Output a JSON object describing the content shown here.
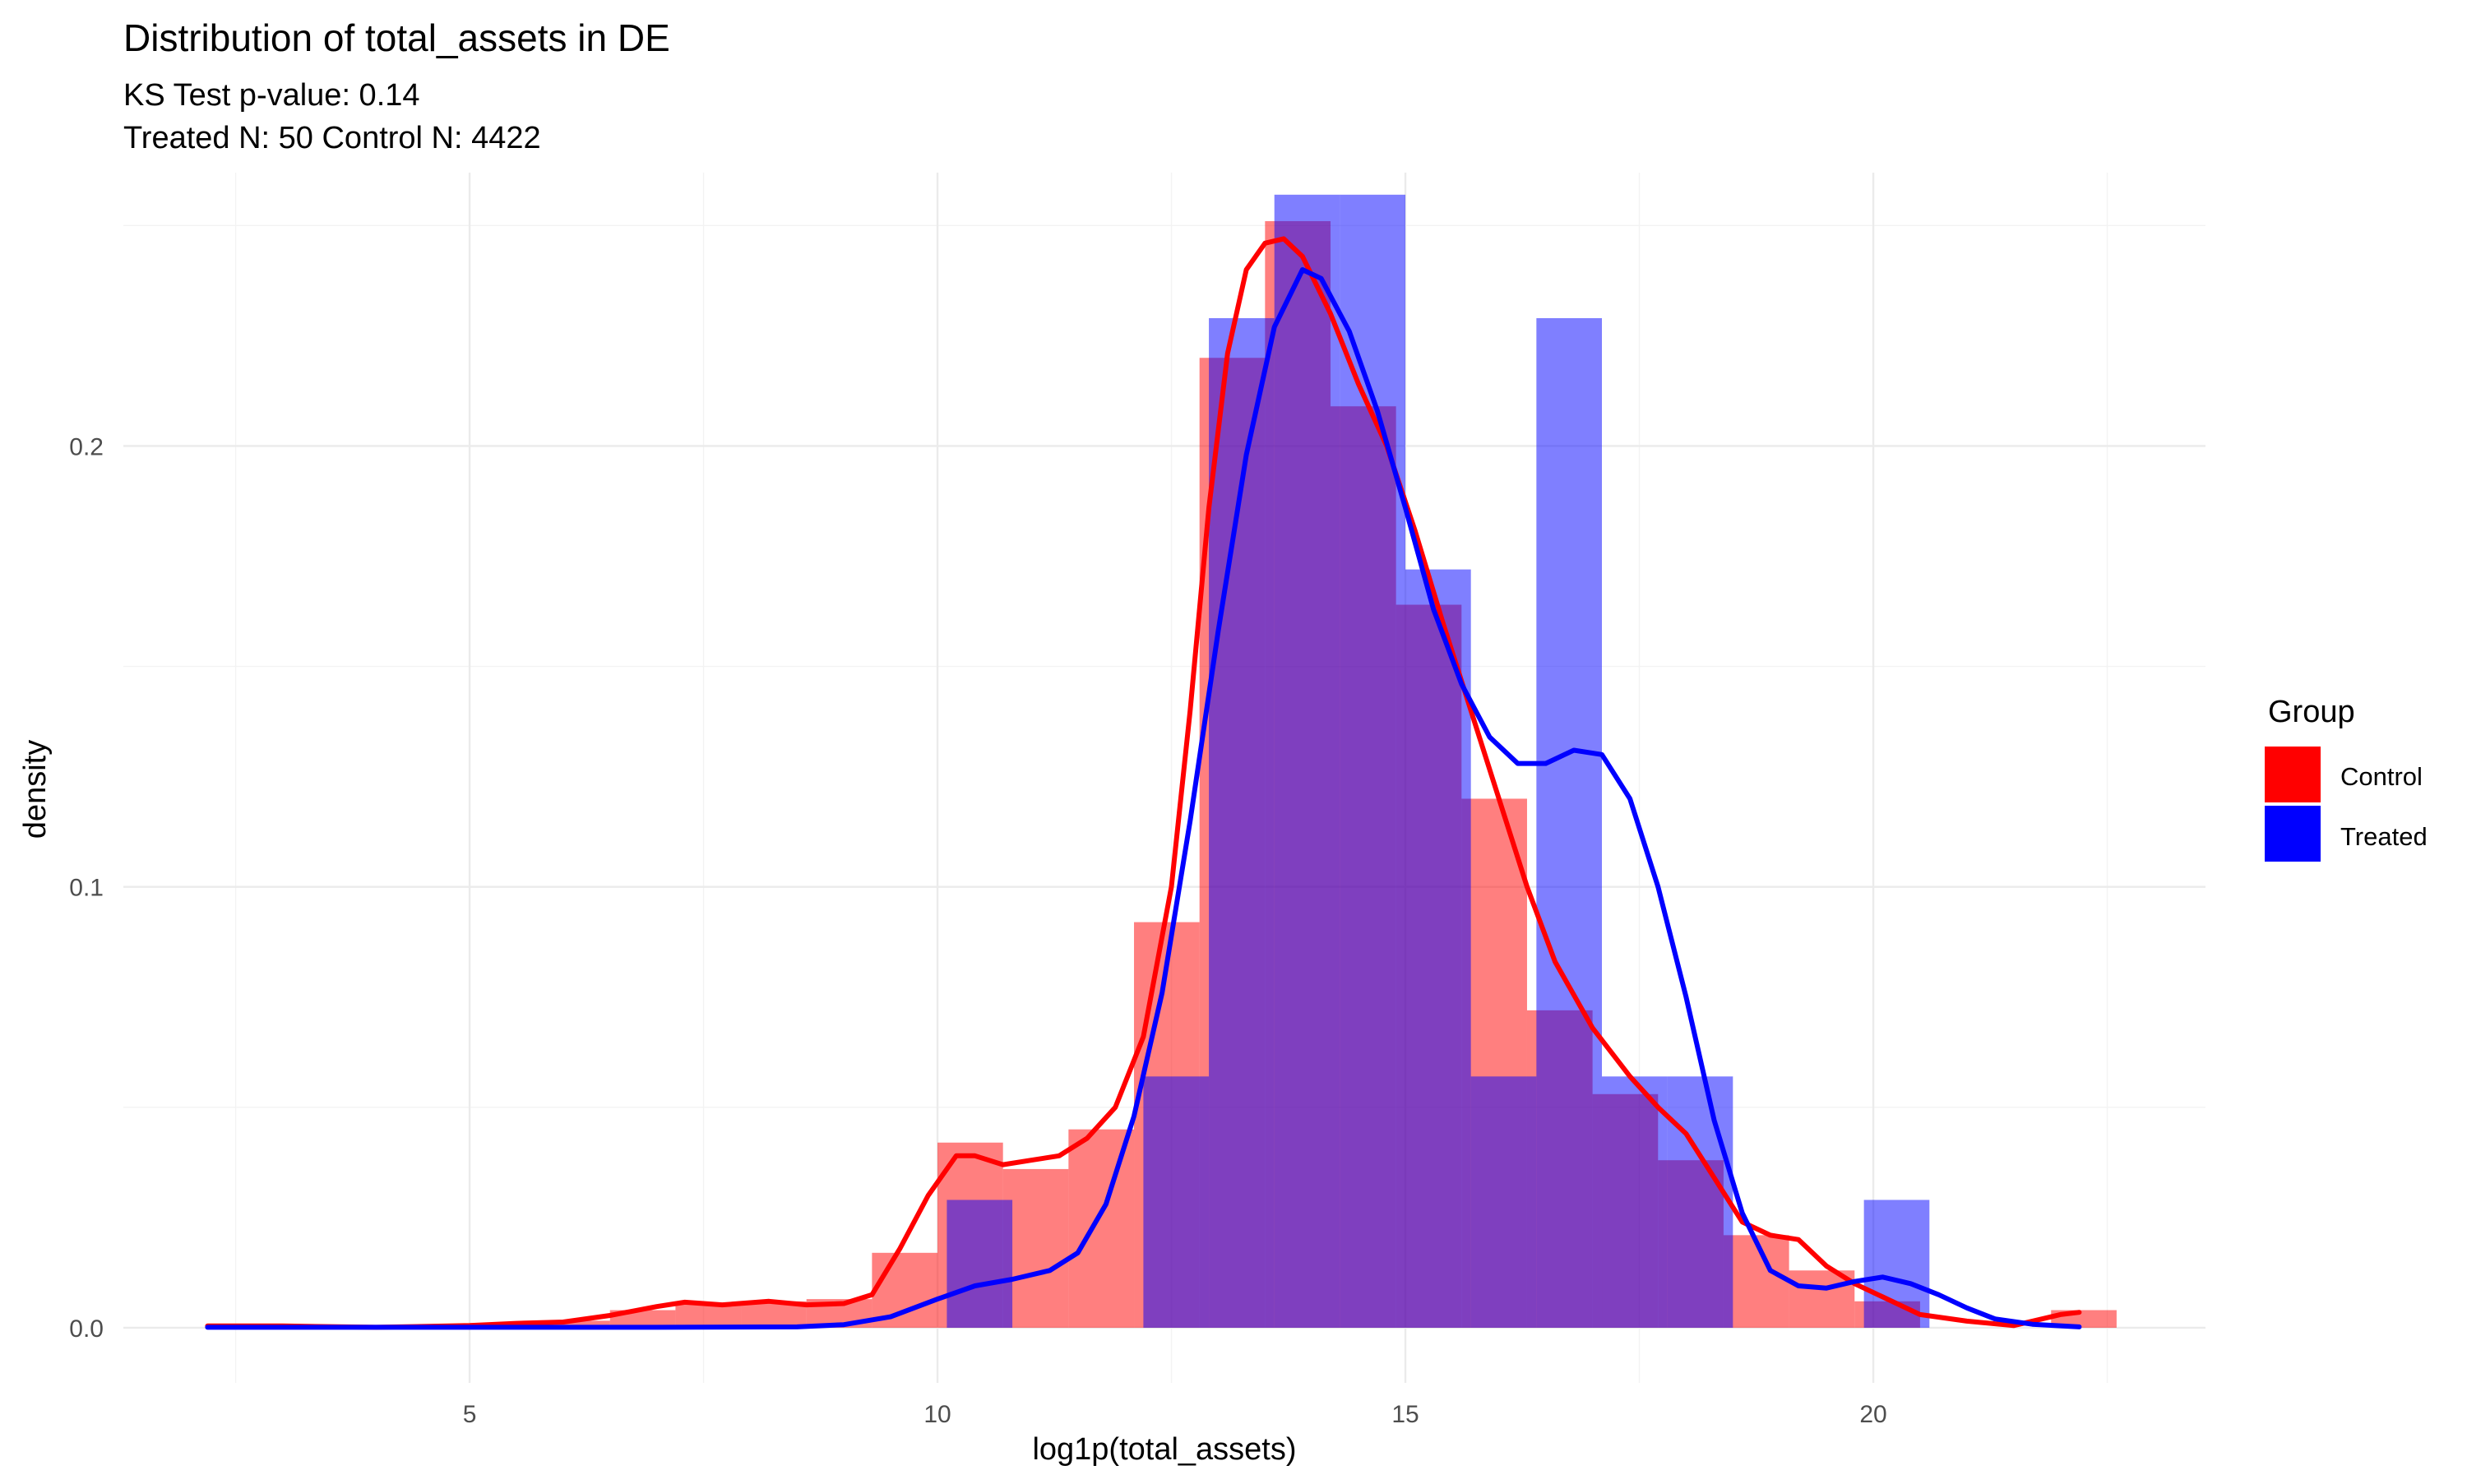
{
  "chart_data": {
    "type": "histogram-density",
    "title": "Distribution of total_assets in DE",
    "subtitle_lines": [
      "KS Test p-value: 0.14",
      "Treated N: 50 Control N: 4422"
    ],
    "xlabel": "log1p(total_assets)",
    "ylabel": "density",
    "xlim": [
      1.3,
      23.55
    ],
    "ylim": [
      -0.0125,
      0.262
    ],
    "x_ticks": [
      5,
      10,
      15,
      20
    ],
    "x_tick_labels": [
      "5",
      "10",
      "15",
      "20"
    ],
    "y_ticks": [
      0.0,
      0.1,
      0.2
    ],
    "y_tick_labels": [
      "0.0",
      "0.1",
      "0.2"
    ],
    "legend": {
      "title": "Group",
      "position": "right",
      "entries": [
        {
          "label": "Control",
          "color": "#ff0000"
        },
        {
          "label": "Treated",
          "color": "#0000ff"
        }
      ]
    },
    "bin_width": 0.7,
    "series": [
      {
        "name": "Control",
        "color": "#ff0000",
        "bins": [
          {
            "x0": 2.3,
            "x1": 3.0,
            "density": 0.0003
          },
          {
            "x0": 3.0,
            "x1": 3.7,
            "density": 0.0003
          },
          {
            "x0": 3.7,
            "x1": 4.4,
            "density": 0.0
          },
          {
            "x0": 4.4,
            "x1": 5.1,
            "density": 0.0
          },
          {
            "x0": 5.1,
            "x1": 5.8,
            "density": 0.0005
          },
          {
            "x0": 5.8,
            "x1": 6.5,
            "density": 0.0016
          },
          {
            "x0": 6.5,
            "x1": 7.2,
            "density": 0.004
          },
          {
            "x0": 7.2,
            "x1": 7.9,
            "density": 0.0053
          },
          {
            "x0": 7.9,
            "x1": 8.6,
            "density": 0.006
          },
          {
            "x0": 8.6,
            "x1": 9.3,
            "density": 0.0065
          },
          {
            "x0": 9.3,
            "x1": 10.0,
            "density": 0.017
          },
          {
            "x0": 10.0,
            "x1": 10.7,
            "density": 0.042
          },
          {
            "x0": 10.7,
            "x1": 11.4,
            "density": 0.036
          },
          {
            "x0": 11.4,
            "x1": 12.1,
            "density": 0.045
          },
          {
            "x0": 12.1,
            "x1": 12.8,
            "density": 0.092
          },
          {
            "x0": 12.8,
            "x1": 13.5,
            "density": 0.22
          },
          {
            "x0": 13.5,
            "x1": 14.2,
            "density": 0.251
          },
          {
            "x0": 14.2,
            "x1": 14.9,
            "density": 0.209
          },
          {
            "x0": 14.9,
            "x1": 15.6,
            "density": 0.164
          },
          {
            "x0": 15.6,
            "x1": 16.3,
            "density": 0.12
          },
          {
            "x0": 16.3,
            "x1": 17.0,
            "density": 0.072
          },
          {
            "x0": 17.0,
            "x1": 17.7,
            "density": 0.053
          },
          {
            "x0": 17.7,
            "x1": 18.4,
            "density": 0.038
          },
          {
            "x0": 18.4,
            "x1": 19.1,
            "density": 0.021
          },
          {
            "x0": 19.1,
            "x1": 19.8,
            "density": 0.013
          },
          {
            "x0": 19.8,
            "x1": 20.5,
            "density": 0.006
          },
          {
            "x0": 20.5,
            "x1": 21.2,
            "density": 0.0
          },
          {
            "x0": 21.2,
            "x1": 21.9,
            "density": 0.0
          },
          {
            "x0": 21.9,
            "x1": 22.6,
            "density": 0.004
          }
        ],
        "density_curve": [
          [
            2.2,
            0.0004
          ],
          [
            3.0,
            0.0004
          ],
          [
            4.0,
            0.0001
          ],
          [
            5.0,
            0.0005
          ],
          [
            5.5,
            0.001
          ],
          [
            6.0,
            0.0013
          ],
          [
            6.5,
            0.0028
          ],
          [
            7.0,
            0.0048
          ],
          [
            7.3,
            0.0058
          ],
          [
            7.7,
            0.0052
          ],
          [
            8.2,
            0.006
          ],
          [
            8.6,
            0.0052
          ],
          [
            9.0,
            0.0055
          ],
          [
            9.3,
            0.0075
          ],
          [
            9.6,
            0.018
          ],
          [
            9.9,
            0.03
          ],
          [
            10.2,
            0.039
          ],
          [
            10.4,
            0.039
          ],
          [
            10.7,
            0.037
          ],
          [
            11.0,
            0.038
          ],
          [
            11.3,
            0.039
          ],
          [
            11.6,
            0.043
          ],
          [
            11.9,
            0.05
          ],
          [
            12.2,
            0.066
          ],
          [
            12.5,
            0.1
          ],
          [
            12.7,
            0.14
          ],
          [
            12.9,
            0.186
          ],
          [
            13.1,
            0.221
          ],
          [
            13.3,
            0.24
          ],
          [
            13.5,
            0.246
          ],
          [
            13.7,
            0.247
          ],
          [
            13.9,
            0.243
          ],
          [
            14.2,
            0.23
          ],
          [
            14.5,
            0.214
          ],
          [
            14.8,
            0.2
          ],
          [
            15.1,
            0.181
          ],
          [
            15.4,
            0.16
          ],
          [
            15.7,
            0.14
          ],
          [
            16.0,
            0.12
          ],
          [
            16.3,
            0.1
          ],
          [
            16.6,
            0.083
          ],
          [
            17.0,
            0.068
          ],
          [
            17.4,
            0.057
          ],
          [
            17.7,
            0.05
          ],
          [
            18.0,
            0.044
          ],
          [
            18.3,
            0.034
          ],
          [
            18.6,
            0.024
          ],
          [
            18.9,
            0.021
          ],
          [
            19.2,
            0.02
          ],
          [
            19.5,
            0.014
          ],
          [
            19.8,
            0.01
          ],
          [
            20.1,
            0.007
          ],
          [
            20.5,
            0.003
          ],
          [
            21.0,
            0.0015
          ],
          [
            21.5,
            0.0005
          ],
          [
            22.0,
            0.003
          ],
          [
            22.2,
            0.0035
          ]
        ]
      },
      {
        "name": "Treated",
        "color": "#0000ff",
        "bins": [
          {
            "x0": 10.1,
            "x1": 10.8,
            "density": 0.029
          },
          {
            "x0": 10.8,
            "x1": 11.5,
            "density": 0.0
          },
          {
            "x0": 11.5,
            "x1": 12.2,
            "density": 0.0
          },
          {
            "x0": 12.2,
            "x1": 12.9,
            "density": 0.057
          },
          {
            "x0": 12.9,
            "x1": 13.6,
            "density": 0.229
          },
          {
            "x0": 13.6,
            "x1": 14.3,
            "density": 0.257
          },
          {
            "x0": 14.3,
            "x1": 15.0,
            "density": 0.257
          },
          {
            "x0": 15.0,
            "x1": 15.7,
            "density": 0.172
          },
          {
            "x0": 15.7,
            "x1": 16.4,
            "density": 0.057
          },
          {
            "x0": 16.4,
            "x1": 17.1,
            "density": 0.229
          },
          {
            "x0": 17.1,
            "x1": 17.8,
            "density": 0.057
          },
          {
            "x0": 17.8,
            "x1": 18.5,
            "density": 0.057
          },
          {
            "x0": 18.5,
            "x1": 19.2,
            "density": 0.0
          },
          {
            "x0": 19.2,
            "x1": 19.9,
            "density": 0.0
          },
          {
            "x0": 19.9,
            "x1": 20.6,
            "density": 0.029
          }
        ],
        "density_curve": [
          [
            2.2,
            0.0001
          ],
          [
            5.0,
            0.0001
          ],
          [
            7.0,
            0.0001
          ],
          [
            8.5,
            0.0002
          ],
          [
            9.0,
            0.0007
          ],
          [
            9.5,
            0.0025
          ],
          [
            10.0,
            0.0065
          ],
          [
            10.4,
            0.0095
          ],
          [
            10.8,
            0.011
          ],
          [
            11.2,
            0.013
          ],
          [
            11.5,
            0.017
          ],
          [
            11.8,
            0.028
          ],
          [
            12.1,
            0.048
          ],
          [
            12.4,
            0.076
          ],
          [
            12.7,
            0.115
          ],
          [
            13.0,
            0.158
          ],
          [
            13.3,
            0.198
          ],
          [
            13.6,
            0.227
          ],
          [
            13.9,
            0.24
          ],
          [
            14.1,
            0.238
          ],
          [
            14.4,
            0.226
          ],
          [
            14.7,
            0.208
          ],
          [
            15.0,
            0.186
          ],
          [
            15.3,
            0.163
          ],
          [
            15.6,
            0.146
          ],
          [
            15.9,
            0.134
          ],
          [
            16.2,
            0.128
          ],
          [
            16.5,
            0.128
          ],
          [
            16.8,
            0.131
          ],
          [
            17.1,
            0.13
          ],
          [
            17.4,
            0.12
          ],
          [
            17.7,
            0.1
          ],
          [
            18.0,
            0.075
          ],
          [
            18.3,
            0.047
          ],
          [
            18.6,
            0.026
          ],
          [
            18.9,
            0.013
          ],
          [
            19.2,
            0.0095
          ],
          [
            19.5,
            0.009
          ],
          [
            19.8,
            0.0105
          ],
          [
            20.1,
            0.0115
          ],
          [
            20.4,
            0.01
          ],
          [
            20.7,
            0.0075
          ],
          [
            21.0,
            0.0045
          ],
          [
            21.3,
            0.002
          ],
          [
            21.7,
            0.0008
          ],
          [
            22.2,
            0.0002
          ]
        ]
      }
    ]
  }
}
